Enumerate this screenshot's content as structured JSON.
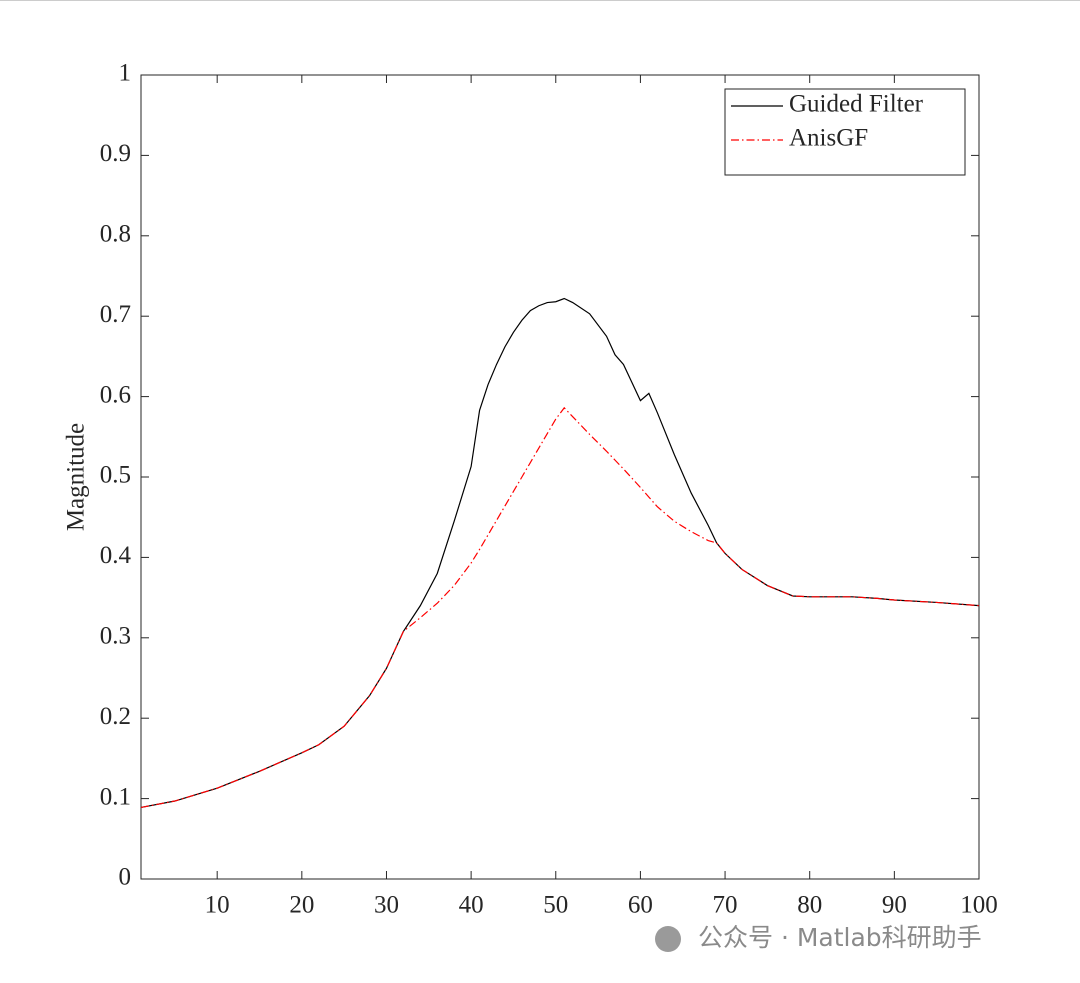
{
  "chart_data": {
    "type": "line",
    "ylabel": "Magnitude",
    "x": [
      1,
      5,
      10,
      15,
      20,
      22,
      25,
      28,
      30,
      32,
      34,
      36,
      38,
      40,
      41,
      42,
      43,
      44,
      45,
      46,
      47,
      48,
      49,
      50,
      51,
      52,
      54,
      56,
      57,
      58,
      60,
      61,
      62,
      64,
      66,
      68,
      69,
      70,
      72,
      75,
      78,
      80,
      85,
      88,
      90,
      95,
      100
    ],
    "series": [
      {
        "name": "Guided Filter",
        "color": "#000000",
        "dash": "solid",
        "values": [
          0.089,
          0.097,
          0.113,
          0.134,
          0.157,
          0.167,
          0.19,
          0.228,
          0.262,
          0.308,
          0.34,
          0.38,
          0.445,
          0.513,
          0.583,
          0.615,
          0.64,
          0.662,
          0.68,
          0.695,
          0.707,
          0.713,
          0.717,
          0.718,
          0.722,
          0.717,
          0.703,
          0.675,
          0.652,
          0.64,
          0.595,
          0.604,
          0.58,
          0.528,
          0.48,
          0.44,
          0.418,
          0.405,
          0.385,
          0.365,
          0.352,
          0.351,
          0.351,
          0.349,
          0.347,
          0.344,
          0.34
        ]
      },
      {
        "name": "AnisGF",
        "color": "#ff0000",
        "dash": "dashdot",
        "values": [
          0.089,
          0.097,
          0.113,
          0.134,
          0.157,
          0.167,
          0.19,
          0.228,
          0.262,
          0.308,
          0.325,
          0.343,
          0.365,
          0.393,
          0.41,
          0.428,
          0.446,
          0.464,
          0.482,
          0.5,
          0.518,
          0.536,
          0.554,
          0.572,
          0.586,
          0.575,
          0.553,
          0.532,
          0.521,
          0.51,
          0.487,
          0.475,
          0.463,
          0.445,
          0.432,
          0.421,
          0.418,
          0.405,
          0.385,
          0.365,
          0.352,
          0.351,
          0.351,
          0.349,
          0.347,
          0.344,
          0.34
        ]
      }
    ],
    "xlim": [
      1,
      100
    ],
    "xticks": [
      10,
      20,
      30,
      40,
      50,
      60,
      70,
      80,
      90,
      100
    ],
    "ylim": [
      0,
      1
    ],
    "yticks": [
      0,
      0.1,
      0.2,
      0.3,
      0.4,
      0.5,
      0.6,
      0.7,
      0.8,
      0.9,
      1
    ],
    "grid": false,
    "legend": "northeast"
  },
  "watermark": "公众号 · Matlab科研助手"
}
